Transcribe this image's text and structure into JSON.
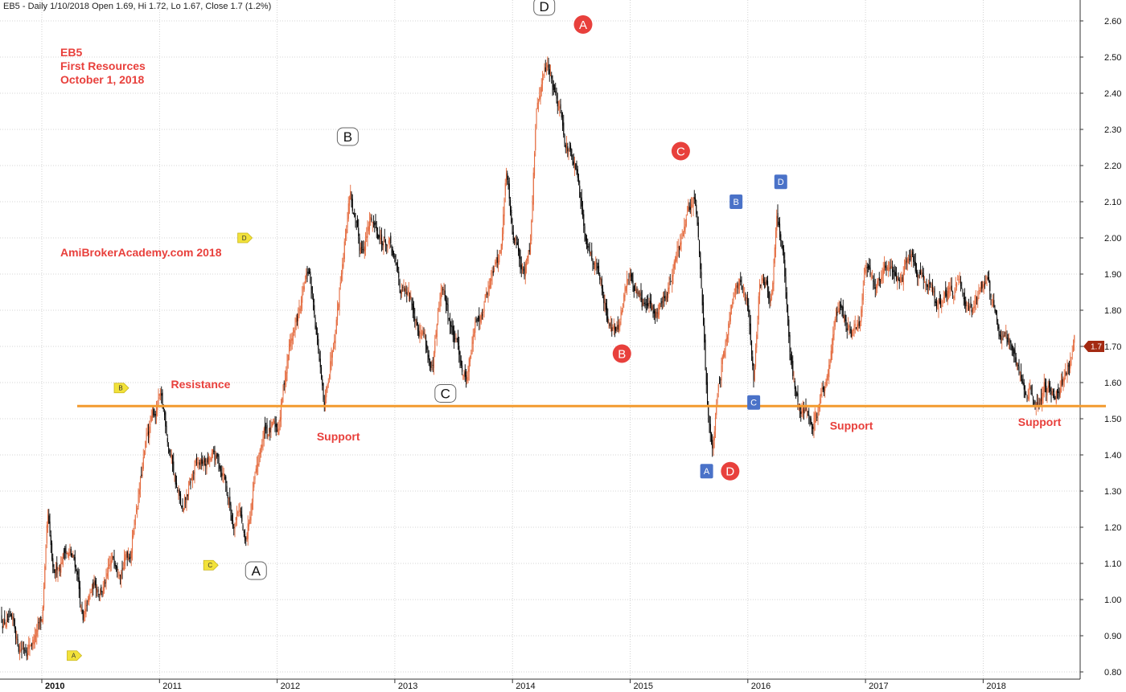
{
  "header": {
    "text": "EB5 - Daily 1/10/2018 Open 1.69, Hi 1.72, Lo 1.67, Close 1.7 (1.2%)"
  },
  "info": {
    "lines": [
      "EB5",
      "First Resources",
      "October 1, 2018"
    ],
    "watermark": "AmiBrokerAcademy.com  2018"
  },
  "last_price_label": "1.7",
  "colors": {
    "up": "#e4693c",
    "down": "#000000",
    "level_line": "#f39a2e",
    "annotation_text": "#e8403c",
    "red_marker": "#e8403c",
    "blue_marker": "#4a72c8",
    "yellow_marker": "#f2e23a",
    "last_price_tag": "#a42a12"
  },
  "chart_data": {
    "type": "candlestick",
    "symbol": "EB5",
    "name": "First Resources",
    "interval": "Daily",
    "x_ticks": [
      "2010",
      "2011",
      "2012",
      "2013",
      "2014",
      "2015",
      "2016",
      "2017",
      "2018"
    ],
    "y_ticks": [
      "0.80",
      "0.90",
      "1.00",
      "1.10",
      "1.20",
      "1.30",
      "1.40",
      "1.50",
      "1.60",
      "1.70",
      "1.80",
      "1.90",
      "2.00",
      "2.10",
      "2.20",
      "2.30",
      "2.40",
      "2.50",
      "2.60"
    ],
    "y_range": [
      0.78,
      2.65
    ],
    "x_range": [
      2009.7,
      2018.85
    ],
    "grid": true,
    "price_path": [
      [
        2009.7,
        0.95
      ],
      [
        2009.8,
        0.86
      ],
      [
        2009.95,
        0.91
      ],
      [
        2010.0,
        0.93
      ],
      [
        2010.05,
        1.2
      ],
      [
        2010.1,
        1.02
      ],
      [
        2010.2,
        1.15
      ],
      [
        2010.3,
        1.08
      ],
      [
        2010.35,
        0.93
      ],
      [
        2010.45,
        1.03
      ],
      [
        2010.55,
        1.05
      ],
      [
        2010.65,
        1.12
      ],
      [
        2010.75,
        1.15
      ],
      [
        2010.8,
        1.27
      ],
      [
        2010.9,
        1.45
      ],
      [
        2011.0,
        1.55
      ],
      [
        2011.1,
        1.4
      ],
      [
        2011.2,
        1.22
      ],
      [
        2011.3,
        1.35
      ],
      [
        2011.45,
        1.38
      ],
      [
        2011.55,
        1.35
      ],
      [
        2011.62,
        1.22
      ],
      [
        2011.68,
        1.28
      ],
      [
        2011.73,
        1.14
      ],
      [
        2011.8,
        1.3
      ],
      [
        2011.9,
        1.47
      ],
      [
        2012.0,
        1.46
      ],
      [
        2012.1,
        1.7
      ],
      [
        2012.2,
        1.8
      ],
      [
        2012.27,
        1.9
      ],
      [
        2012.35,
        1.7
      ],
      [
        2012.4,
        1.5
      ],
      [
        2012.45,
        1.65
      ],
      [
        2012.55,
        1.95
      ],
      [
        2012.62,
        2.15
      ],
      [
        2012.7,
        1.95
      ],
      [
        2012.8,
        2.05
      ],
      [
        2012.95,
        1.98
      ],
      [
        2013.05,
        1.85
      ],
      [
        2013.15,
        1.8
      ],
      [
        2013.25,
        1.75
      ],
      [
        2013.32,
        1.62
      ],
      [
        2013.4,
        1.85
      ],
      [
        2013.5,
        1.72
      ],
      [
        2013.6,
        1.62
      ],
      [
        2013.7,
        1.78
      ],
      [
        2013.8,
        1.88
      ],
      [
        2013.9,
        1.96
      ],
      [
        2013.95,
        2.2
      ],
      [
        2014.0,
        2.05
      ],
      [
        2014.05,
        2.0
      ],
      [
        2014.1,
        1.92
      ],
      [
        2014.15,
        2.0
      ],
      [
        2014.2,
        2.35
      ],
      [
        2014.3,
        2.48
      ],
      [
        2014.4,
        2.38
      ],
      [
        2014.45,
        2.3
      ],
      [
        2014.55,
        2.15
      ],
      [
        2014.6,
        2.02
      ],
      [
        2014.7,
        1.95
      ],
      [
        2014.8,
        1.8
      ],
      [
        2014.9,
        1.74
      ],
      [
        2015.0,
        1.9
      ],
      [
        2015.1,
        1.83
      ],
      [
        2015.2,
        1.78
      ],
      [
        2015.3,
        1.85
      ],
      [
        2015.4,
        1.95
      ],
      [
        2015.5,
        2.05
      ],
      [
        2015.55,
        2.12
      ],
      [
        2015.6,
        1.88
      ],
      [
        2015.65,
        1.55
      ],
      [
        2015.7,
        1.42
      ],
      [
        2015.75,
        1.55
      ],
      [
        2015.8,
        1.7
      ],
      [
        2015.9,
        1.92
      ],
      [
        2016.0,
        1.82
      ],
      [
        2016.05,
        1.62
      ],
      [
        2016.1,
        1.9
      ],
      [
        2016.2,
        1.85
      ],
      [
        2016.25,
        2.05
      ],
      [
        2016.3,
        1.95
      ],
      [
        2016.35,
        1.7
      ],
      [
        2016.4,
        1.58
      ],
      [
        2016.5,
        1.55
      ],
      [
        2016.55,
        1.49
      ],
      [
        2016.65,
        1.55
      ],
      [
        2016.75,
        1.82
      ],
      [
        2016.85,
        1.75
      ],
      [
        2016.95,
        1.72
      ],
      [
        2017.0,
        1.93
      ],
      [
        2017.1,
        1.9
      ],
      [
        2017.2,
        1.93
      ],
      [
        2017.3,
        1.88
      ],
      [
        2017.4,
        1.95
      ],
      [
        2017.5,
        1.85
      ],
      [
        2017.6,
        1.83
      ],
      [
        2017.7,
        1.85
      ],
      [
        2017.8,
        1.88
      ],
      [
        2017.9,
        1.83
      ],
      [
        2018.0,
        1.85
      ],
      [
        2018.05,
        1.88
      ],
      [
        2018.15,
        1.75
      ],
      [
        2018.25,
        1.65
      ],
      [
        2018.35,
        1.6
      ],
      [
        2018.45,
        1.55
      ],
      [
        2018.52,
        1.6
      ],
      [
        2018.6,
        1.56
      ],
      [
        2018.7,
        1.62
      ],
      [
        2018.78,
        1.72
      ]
    ],
    "horizontal_line": {
      "value": 1.535
    },
    "annotations": [
      {
        "text": "Resistance",
        "x": 2011.35,
        "y": 1.585
      },
      {
        "text": "Support",
        "x": 2012.52,
        "y": 1.44
      },
      {
        "text": "Support",
        "x": 2016.88,
        "y": 1.47
      },
      {
        "text": "Support",
        "x": 2018.48,
        "y": 1.48
      }
    ],
    "wave_markers": [
      {
        "style": "white",
        "label": "A",
        "x": 2011.82,
        "y": 1.08
      },
      {
        "style": "white",
        "label": "B",
        "x": 2012.6,
        "y": 2.28
      },
      {
        "style": "white",
        "label": "C",
        "x": 2013.43,
        "y": 1.57
      },
      {
        "style": "white",
        "label": "D",
        "x": 2014.27,
        "y": 2.64
      },
      {
        "style": "red",
        "label": "A",
        "x": 2014.6,
        "y": 2.59
      },
      {
        "style": "red",
        "label": "B",
        "x": 2014.93,
        "y": 1.68
      },
      {
        "style": "red",
        "label": "C",
        "x": 2015.43,
        "y": 2.24
      },
      {
        "style": "red",
        "label": "D",
        "x": 2015.85,
        "y": 1.355
      },
      {
        "style": "blue",
        "label": "A",
        "x": 2015.65,
        "y": 1.355
      },
      {
        "style": "blue",
        "label": "B",
        "x": 2015.9,
        "y": 2.1
      },
      {
        "style": "blue",
        "label": "C",
        "x": 2016.05,
        "y": 1.545
      },
      {
        "style": "blue",
        "label": "D",
        "x": 2016.28,
        "y": 2.155
      },
      {
        "style": "yellow",
        "label": "A",
        "x": 2010.27,
        "y": 0.845
      },
      {
        "style": "yellow",
        "label": "B",
        "x": 2010.67,
        "y": 1.585
      },
      {
        "style": "yellow",
        "label": "C",
        "x": 2011.43,
        "y": 1.095
      },
      {
        "style": "yellow",
        "label": "D",
        "x": 2011.72,
        "y": 2.0
      }
    ],
    "last_close": 1.7
  }
}
